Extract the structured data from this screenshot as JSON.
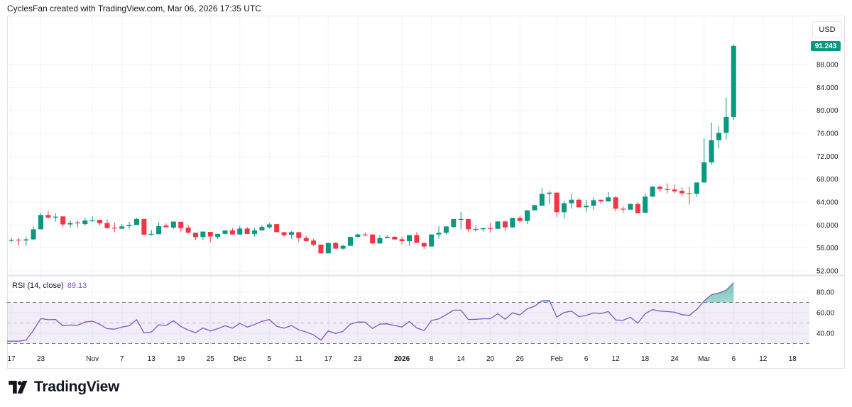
{
  "header": {
    "text": "CyclesFan created with TradingView.com, Mar 06, 2026 17:35 UTC"
  },
  "currency_button": "USD",
  "last_price_badge": "91.243",
  "footer": {
    "logo_text": "TradingView",
    "logo_icon": "tradingview-logo-icon"
  },
  "colors": {
    "up": "#089981",
    "down": "#F23645",
    "rsi": "#7E57C2",
    "rsi_band": "#7E57C2",
    "grid": "#F0F3FA"
  },
  "chart_data": [
    {
      "type": "candlestick",
      "title": "",
      "y_ticks": [
        "52.000",
        "56.000",
        "60.000",
        "64.000",
        "68.000",
        "72.000",
        "76.000",
        "80.000",
        "84.000",
        "88.000"
      ],
      "ylim": [
        52000,
        88000
      ],
      "x_ticks": [
        "17",
        "23",
        "Nov",
        "7",
        "13",
        "19",
        "25",
        "Dec",
        "5",
        "11",
        "17",
        "23",
        "2026",
        "8",
        "14",
        "20",
        "26",
        "Feb",
        "6",
        "12",
        "18",
        "24",
        "Mar",
        "6",
        "12",
        "18"
      ],
      "grid": true,
      "candles": [
        [
          57300,
          57750,
          56900,
          57400
        ],
        [
          57450,
          57750,
          56400,
          57350
        ],
        [
          57300,
          58000,
          56400,
          57500
        ],
        [
          57500,
          59750,
          57300,
          59250
        ],
        [
          59250,
          62150,
          59250,
          61750
        ],
        [
          61750,
          62450,
          61150,
          61300
        ],
        [
          61400,
          62050,
          60600,
          61450
        ],
        [
          61500,
          61500,
          59650,
          60100
        ],
        [
          60100,
          60800,
          59550,
          60350
        ],
        [
          60450,
          60700,
          59600,
          60400
        ],
        [
          60150,
          61250,
          59850,
          60800
        ],
        [
          60800,
          61500,
          60500,
          60850
        ],
        [
          60900,
          60900,
          59950,
          60300
        ],
        [
          60350,
          60990,
          59450,
          59450
        ],
        [
          59550,
          60450,
          58750,
          59500
        ],
        [
          59350,
          60150,
          59350,
          59750
        ],
        [
          59800,
          60500,
          59350,
          60000
        ],
        [
          60000,
          61300,
          60000,
          61050
        ],
        [
          61050,
          61050,
          58300,
          58300
        ],
        [
          58400,
          59150,
          58150,
          58450
        ],
        [
          58400,
          60550,
          58350,
          59800
        ],
        [
          59900,
          60300,
          59600,
          59600
        ],
        [
          59550,
          60600,
          59350,
          60600
        ],
        [
          60550,
          60550,
          58750,
          59450
        ],
        [
          59550,
          60000,
          58550,
          58650
        ],
        [
          58650,
          58650,
          57350,
          57900
        ],
        [
          57900,
          58850,
          57350,
          58850
        ],
        [
          58800,
          58800,
          56950,
          58000
        ],
        [
          57950,
          58500,
          57600,
          58450
        ],
        [
          58450,
          59050,
          58450,
          59050
        ],
        [
          59050,
          59450,
          58350,
          58350
        ],
        [
          58350,
          59880,
          58350,
          59380
        ],
        [
          59380,
          59670,
          58430,
          58430
        ],
        [
          58450,
          59460,
          58020,
          59050
        ],
        [
          59050,
          60000,
          59050,
          59670
        ],
        [
          59600,
          60400,
          59400,
          60100
        ],
        [
          60150,
          60150,
          58750,
          58750
        ],
        [
          58750,
          58750,
          57950,
          58230
        ],
        [
          58300,
          58930,
          57610,
          58760
        ],
        [
          58750,
          58750,
          56990,
          57730
        ],
        [
          57730,
          58100,
          57200,
          57200
        ],
        [
          57280,
          57610,
          56290,
          56580
        ],
        [
          56580,
          56580,
          55050,
          55050
        ],
        [
          55050,
          56870,
          55050,
          56870
        ],
        [
          56870,
          56990,
          55880,
          55880
        ],
        [
          55880,
          56580,
          55630,
          56370
        ],
        [
          56370,
          57940,
          56370,
          57940
        ],
        [
          57940,
          58520,
          57800,
          58350
        ],
        [
          58350,
          58720,
          58020,
          58300
        ],
        [
          58350,
          58350,
          56780,
          56780
        ],
        [
          56780,
          58230,
          56780,
          57730
        ],
        [
          57730,
          58230,
          57730,
          57940
        ],
        [
          57940,
          58020,
          57480,
          57480
        ],
        [
          57520,
          57940,
          56580,
          57200
        ],
        [
          57200,
          58230,
          56370,
          58230
        ],
        [
          58230,
          58760,
          56900,
          56900
        ],
        [
          56870,
          56870,
          55840,
          56250
        ],
        [
          56250,
          58350,
          56250,
          58350
        ],
        [
          58350,
          59750,
          57610,
          58640
        ],
        [
          58640,
          59750,
          58380,
          59750
        ],
        [
          59670,
          61030,
          59460,
          61030
        ],
        [
          61030,
          62270,
          59260,
          61050
        ],
        [
          61030,
          61030,
          58840,
          59260
        ],
        [
          59260,
          59870,
          58840,
          59300
        ],
        [
          59260,
          59460,
          58840,
          59460
        ],
        [
          59460,
          60410,
          58640,
          59420
        ],
        [
          59340,
          60700,
          59340,
          60620
        ],
        [
          60620,
          60820,
          58930,
          59590
        ],
        [
          59590,
          61240,
          59590,
          61240
        ],
        [
          61240,
          61610,
          60290,
          60700
        ],
        [
          60700,
          62560,
          60160,
          62560
        ],
        [
          62560,
          63460,
          62560,
          63460
        ],
        [
          63380,
          66470,
          63380,
          65440
        ],
        [
          65440,
          65940,
          63710,
          65650
        ],
        [
          65650,
          65650,
          61400,
          62230
        ],
        [
          62230,
          64200,
          61110,
          63790
        ],
        [
          63790,
          65440,
          62840,
          64410
        ],
        [
          64410,
          64620,
          63090,
          63090
        ],
        [
          63100,
          64410,
          62230,
          63380
        ],
        [
          63380,
          64830,
          62640,
          64330
        ],
        [
          64410,
          64410,
          63710,
          64120
        ],
        [
          64120,
          65770,
          64120,
          64830
        ],
        [
          64830,
          65110,
          62350,
          62840
        ],
        [
          62840,
          63300,
          62150,
          62760
        ],
        [
          62680,
          63790,
          62680,
          63670
        ],
        [
          63670,
          63990,
          62060,
          62060
        ],
        [
          62150,
          65530,
          62150,
          64950
        ],
        [
          64950,
          66850,
          64950,
          66680
        ],
        [
          66680,
          66880,
          65860,
          66270
        ],
        [
          66270,
          67300,
          65530,
          66250
        ],
        [
          66190,
          67010,
          65530,
          65860
        ],
        [
          65980,
          66560,
          65110,
          65530
        ],
        [
          65600,
          66680,
          63590,
          65530
        ],
        [
          65450,
          67420,
          64910,
          67420
        ],
        [
          67420,
          75050,
          67420,
          70930
        ],
        [
          70930,
          77900,
          70520,
          74800
        ],
        [
          74800,
          77200,
          73360,
          76080
        ],
        [
          76080,
          82230,
          74930,
          78850
        ],
        [
          78850,
          91540,
          78310,
          91243
        ]
      ]
    },
    {
      "type": "line",
      "legend": {
        "name": "RSI (14, close)",
        "value": "89.13"
      },
      "y_ticks": [
        "80.00",
        "60.00",
        "40.00"
      ],
      "bands": {
        "upper": 70,
        "middle": 50,
        "lower": 30
      },
      "values": [
        32.3,
        32.3,
        33.3,
        43,
        54.3,
        53.2,
        53.4,
        47.3,
        48,
        47.8,
        51,
        51.7,
        48.7,
        44.5,
        44,
        46.1,
        47.3,
        53.2,
        40.5,
        41.2,
        48.2,
        47.5,
        52.2,
        46.6,
        43.1,
        40.5,
        45.2,
        42.2,
        44.5,
        47.3,
        45,
        49.6,
        45.9,
        48.5,
        51.5,
        53.4,
        46.8,
        45,
        47.5,
        43.3,
        41.2,
        38.4,
        33.3,
        42.2,
        39.8,
        41.9,
        48.9,
        51,
        50.8,
        44.7,
        48.9,
        49.2,
        47.5,
        46.1,
        51.5,
        45.2,
        42.6,
        52.4,
        53.9,
        58.1,
        62.5,
        62.5,
        53.4,
        53.6,
        54.1,
        54.1,
        59,
        53.6,
        59.9,
        57.8,
        63.7,
        66.3,
        71.6,
        72.1,
        55.7,
        60.2,
        61.6,
        56.2,
        57.4,
        59.7,
        59.2,
        61.1,
        52.9,
        52.7,
        55.5,
        49.9,
        59,
        63,
        61.6,
        61.1,
        60.4,
        58.1,
        57.4,
        63.2,
        71.4,
        77.5,
        79.1,
        81.9,
        89.13
      ]
    }
  ]
}
